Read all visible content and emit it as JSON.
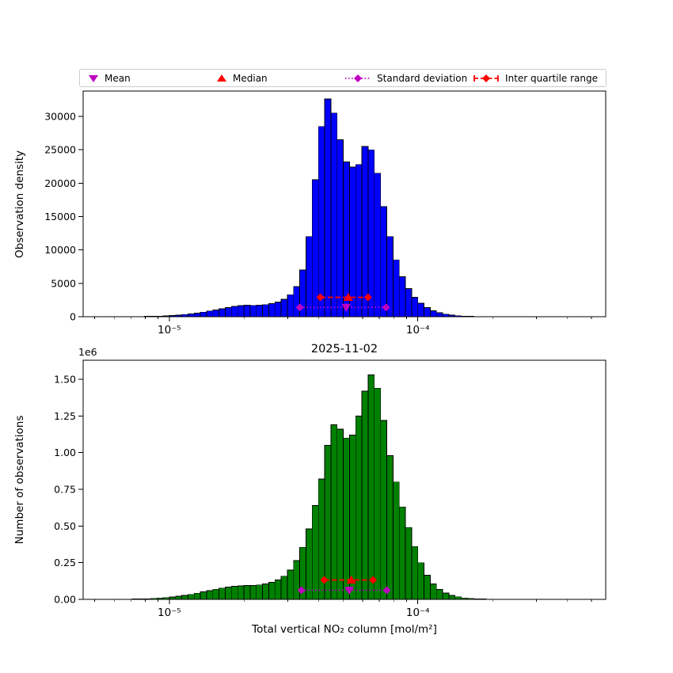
{
  "colors": {
    "blue": "#0000ff",
    "green": "#008000",
    "magenta": "#c000c0",
    "red": "#ff0000",
    "black": "#000000"
  },
  "figure": {
    "xlabel": "Total vertical NO₂ column [mol/m²]",
    "legend": [
      {
        "label": "Mean",
        "marker": "triangle-down",
        "color": "#c000c0"
      },
      {
        "label": "Median",
        "marker": "triangle-up",
        "color": "#ff0000"
      },
      {
        "label": "Standard deviation",
        "marker": "diamond-dotted-line",
        "color": "#c000c0"
      },
      {
        "label": "Inter quartile range",
        "marker": "diamond-dashed-line",
        "color": "#ff0000"
      }
    ]
  },
  "chart_data": [
    {
      "type": "bar",
      "name": "observation-density-histogram",
      "ylabel": "Observation density",
      "bar_color": "#0000ff",
      "x_scale": "log",
      "xlim": [
        4.5e-06,
        0.00057
      ],
      "ylim": [
        0,
        33800
      ],
      "xticks": [
        1e-05,
        0.0001
      ],
      "xtick_labels": [
        "10⁻⁵",
        "10⁻⁴"
      ],
      "yticks": [
        0,
        5000,
        10000,
        15000,
        20000,
        25000,
        30000
      ],
      "ytick_labels": [
        "0",
        "5000",
        "10000",
        "15000",
        "20000",
        "25000",
        "30000"
      ],
      "bin_log10_start": -5.15,
      "bin_log10_width": 0.025,
      "values": [
        20,
        30,
        45,
        65,
        95,
        135,
        185,
        250,
        330,
        430,
        550,
        690,
        850,
        1020,
        1200,
        1380,
        1530,
        1650,
        1720,
        1700,
        1720,
        1800,
        1950,
        2200,
        2600,
        3300,
        4500,
        7000,
        12000,
        20500,
        28500,
        32600,
        30500,
        26500,
        23200,
        22400,
        22800,
        25500,
        25000,
        21500,
        16500,
        12000,
        8500,
        6000,
        4200,
        2900,
        2000,
        1350,
        900,
        600,
        380,
        240,
        150,
        90,
        55,
        30,
        18,
        10,
        5,
        2
      ],
      "stats": {
        "mean_x": 5.15e-05,
        "mean_y": 1400,
        "median_x": 5.25e-05,
        "median_y": 2900,
        "std": [
          3.35e-05,
          7.45e-05
        ],
        "std_y": 1400,
        "iqr": [
          4.05e-05,
          6.3e-05
        ],
        "iqr_y": 2900
      }
    },
    {
      "type": "bar",
      "name": "number-of-observations-histogram",
      "title": "2025-11-02",
      "ylabel": "Number of observations",
      "offset_label": "1e6",
      "bar_color": "#008000",
      "x_scale": "log",
      "xlim": [
        4.5e-06,
        0.00057
      ],
      "ylim": [
        0,
        1630000
      ],
      "xticks": [
        1e-05,
        0.0001
      ],
      "xtick_labels": [
        "10⁻⁵",
        "10⁻⁴"
      ],
      "yticks": [
        0,
        250000,
        500000,
        750000,
        1000000,
        1250000,
        1500000
      ],
      "ytick_labels": [
        "0.00",
        "0.25",
        "0.50",
        "0.75",
        "1.00",
        "1.25",
        "1.50"
      ],
      "bin_log10_start": -5.15,
      "bin_log10_width": 0.025,
      "values": [
        2000,
        3000,
        4500,
        6500,
        9000,
        12000,
        16000,
        21000,
        27000,
        34000,
        42000,
        51000,
        60000,
        69000,
        77000,
        84000,
        89000,
        92000,
        94000,
        95000,
        98000,
        105000,
        116000,
        132000,
        158000,
        200000,
        265000,
        355000,
        480000,
        640000,
        820000,
        1050000,
        1190000,
        1160000,
        1100000,
        1120000,
        1250000,
        1420000,
        1530000,
        1440000,
        1220000,
        980000,
        800000,
        630000,
        490000,
        360000,
        250000,
        165000,
        105000,
        68000,
        43000,
        27000,
        17000,
        10000,
        6500,
        4000,
        2500,
        1500,
        800,
        400
      ],
      "stats": {
        "mean_x": 5.3e-05,
        "mean_y": 62000,
        "median_x": 5.4e-05,
        "median_y": 132000,
        "std": [
          3.4e-05,
          7.5e-05
        ],
        "std_y": 62000,
        "iqr": [
          4.2e-05,
          6.6e-05
        ],
        "iqr_y": 132000
      }
    }
  ]
}
